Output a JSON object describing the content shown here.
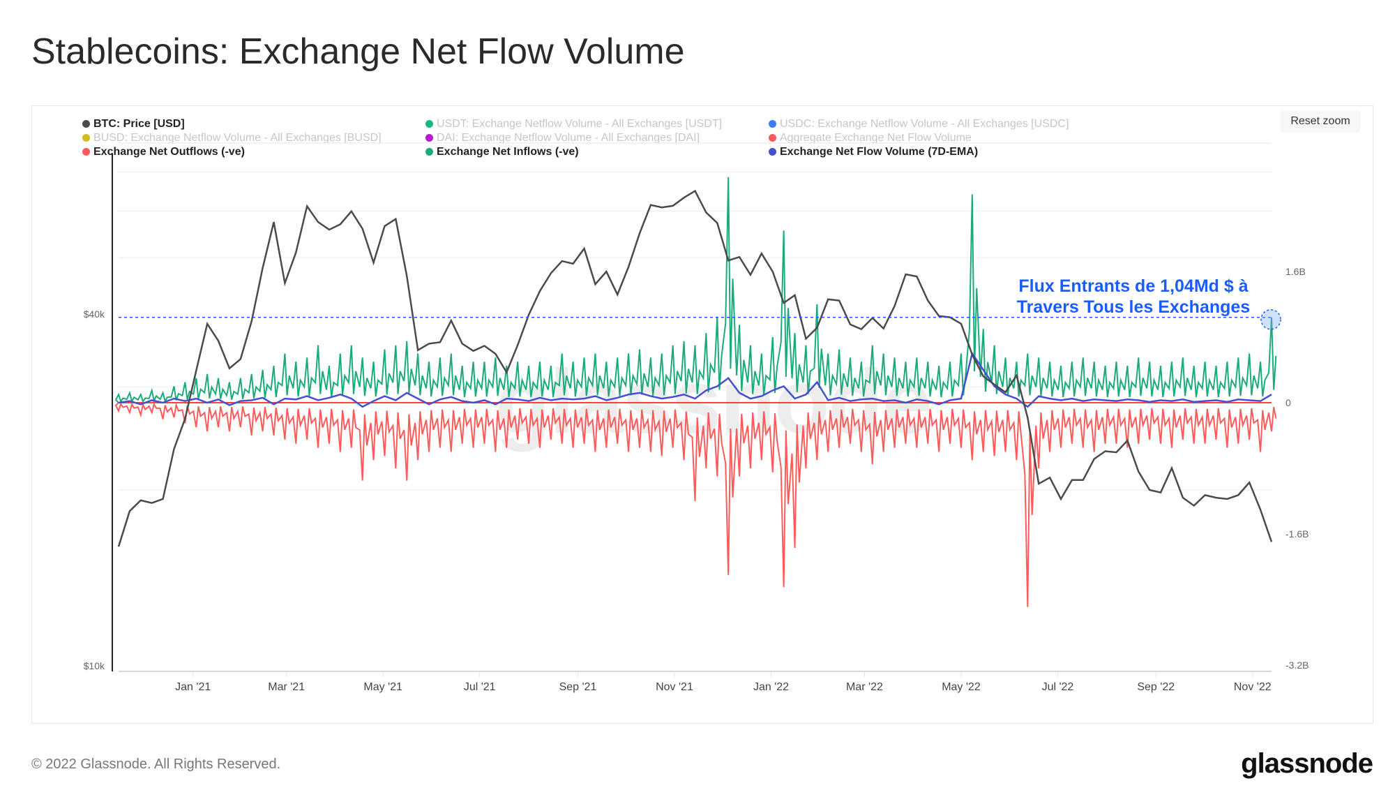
{
  "title": "Stablecoins: Exchange Net Flow Volume",
  "reset_zoom_label": "Reset zoom",
  "watermark": "glassnode",
  "footer": {
    "copyright": "© 2022 Glassnode. All Rights Reserved.",
    "logo": "glassnode"
  },
  "legend": [
    {
      "label": "BTC: Price [USD]",
      "color": "#4a4a4a",
      "active": true
    },
    {
      "label": "USDT: Exchange Netflow Volume - All Exchanges [USDT]",
      "color": "#1bb67f",
      "active": false
    },
    {
      "label": "USDC: Exchange Netflow Volume - All Exchanges [USDC]",
      "color": "#3b7bff",
      "active": false
    },
    {
      "label": "BUSD: Exchange Netflow Volume - All Exchanges [BUSD]",
      "color": "#d4bc1e",
      "active": false
    },
    {
      "label": "DAI: Exchange Netflow Volume - All Exchanges [DAI]",
      "color": "#b01ec8",
      "active": false
    },
    {
      "label": "Aggregate Exchange Net Flow Volume",
      "color": "#ff5a5a",
      "active": false
    },
    {
      "label": "Exchange Net Outflows (-ve)",
      "color": "#ff5a5a",
      "active": true
    },
    {
      "label": "Exchange Net Inflows (-ve)",
      "color": "#1aab7c",
      "active": true
    },
    {
      "label": "Exchange Net Flow Volume (7D-EMA)",
      "color": "#4450d0",
      "active": true
    }
  ],
  "annotation": {
    "line1": "Flux Entrants de 1,04Md $ à",
    "line2": "Travers Tous les Exchanges",
    "value": 1.04,
    "color": "#1a5cff"
  },
  "chart_data": {
    "type": "line",
    "title": "Stablecoins: Exchange Net Flow Volume",
    "x_ticks": [
      "Jan '21",
      "Mar '21",
      "May '21",
      "Jul '21",
      "Sep '21",
      "Nov '21",
      "Jan '22",
      "Mar '22",
      "May '22",
      "Jul '22",
      "Sep '22",
      "Nov '22"
    ],
    "x_tick_dates": [
      "2021-01-01",
      "2021-03-01",
      "2021-05-01",
      "2021-07-01",
      "2021-09-01",
      "2021-11-01",
      "2022-01-01",
      "2022-03-01",
      "2022-05-01",
      "2022-07-01",
      "2022-09-01",
      "2022-11-01"
    ],
    "xlim": [
      "2020-11-15",
      "2022-11-13"
    ],
    "y_left": {
      "scale": "log",
      "ticks": [
        "$10k",
        "$40k"
      ],
      "tick_values": [
        10000,
        40000
      ],
      "range": [
        10000,
        78000
      ]
    },
    "y_right": {
      "ticks": [
        "1.6B",
        "0",
        "-1.6B",
        "-3.2B"
      ],
      "tick_values": [
        1.6,
        0,
        -1.6,
        -3.2
      ],
      "range": [
        -3.2,
        3.2
      ],
      "unit": "B USD"
    },
    "grid": true,
    "legend_position": "top",
    "x": [
      "2020-11-15",
      "2020-11-22",
      "2020-11-29",
      "2020-12-06",
      "2020-12-13",
      "2020-12-20",
      "2020-12-27",
      "2021-01-03",
      "2021-01-10",
      "2021-01-17",
      "2021-01-24",
      "2021-01-31",
      "2021-02-07",
      "2021-02-14",
      "2021-02-21",
      "2021-02-28",
      "2021-03-07",
      "2021-03-14",
      "2021-03-21",
      "2021-03-28",
      "2021-04-04",
      "2021-04-11",
      "2021-04-18",
      "2021-04-25",
      "2021-05-02",
      "2021-05-09",
      "2021-05-16",
      "2021-05-23",
      "2021-05-30",
      "2021-06-06",
      "2021-06-13",
      "2021-06-20",
      "2021-06-27",
      "2021-07-04",
      "2021-07-11",
      "2021-07-18",
      "2021-07-25",
      "2021-08-01",
      "2021-08-08",
      "2021-08-15",
      "2021-08-22",
      "2021-08-29",
      "2021-09-05",
      "2021-09-12",
      "2021-09-19",
      "2021-09-26",
      "2021-10-03",
      "2021-10-10",
      "2021-10-17",
      "2021-10-24",
      "2021-10-31",
      "2021-11-07",
      "2021-11-14",
      "2021-11-21",
      "2021-11-28",
      "2021-12-05",
      "2021-12-12",
      "2021-12-19",
      "2021-12-26",
      "2022-01-02",
      "2022-01-09",
      "2022-01-16",
      "2022-01-23",
      "2022-01-30",
      "2022-02-06",
      "2022-02-13",
      "2022-02-20",
      "2022-02-27",
      "2022-03-06",
      "2022-03-13",
      "2022-03-20",
      "2022-03-27",
      "2022-04-03",
      "2022-04-10",
      "2022-04-17",
      "2022-04-24",
      "2022-05-01",
      "2022-05-08",
      "2022-05-15",
      "2022-05-22",
      "2022-05-29",
      "2022-06-05",
      "2022-06-12",
      "2022-06-19",
      "2022-06-26",
      "2022-07-03",
      "2022-07-10",
      "2022-07-17",
      "2022-07-24",
      "2022-07-31",
      "2022-08-07",
      "2022-08-14",
      "2022-08-21",
      "2022-08-28",
      "2022-09-04",
      "2022-09-11",
      "2022-09-18",
      "2022-09-25",
      "2022-10-02",
      "2022-10-09",
      "2022-10-16",
      "2022-10-23",
      "2022-10-30",
      "2022-11-06",
      "2022-11-13"
    ],
    "series": [
      {
        "name": "BTC: Price [USD]",
        "axis": "left",
        "color": "#4a4a4a",
        "values": [
          16000,
          18400,
          19200,
          19000,
          19300,
          23500,
          26500,
          32000,
          38500,
          36000,
          32300,
          33500,
          38900,
          48000,
          57500,
          45200,
          51000,
          61200,
          57500,
          55800,
          57000,
          60000,
          56000,
          49000,
          56600,
          58200,
          46500,
          34700,
          35600,
          35800,
          39000,
          35600,
          34600,
          35300,
          34200,
          31800,
          35400,
          39900,
          43800,
          47000,
          49300,
          48800,
          51800,
          45000,
          47300,
          43200,
          48200,
          55000,
          61500,
          60900,
          61300,
          63300,
          65000,
          59700,
          57300,
          49400,
          50100,
          46700,
          50800,
          47300,
          41800,
          43100,
          36300,
          37900,
          42400,
          42200,
          38400,
          37700,
          39400,
          37800,
          41300,
          46800,
          46400,
          42200,
          39700,
          39500,
          38500,
          34100,
          31300,
          30300,
          29400,
          31400,
          26600,
          20500,
          21000,
          19300,
          20800,
          20800,
          22600,
          23300,
          23200,
          24300,
          21500,
          20000,
          19800,
          21800,
          19400,
          18800,
          19600,
          19400,
          19300,
          19600,
          20600,
          18500,
          16300
        ]
      },
      {
        "name": "Exchange Net Inflows (-ve)",
        "axis": "right",
        "color": "#1aab7c",
        "values": [
          0.1,
          0.12,
          0.1,
          0.15,
          0.12,
          0.2,
          0.25,
          0.3,
          0.35,
          0.3,
          0.25,
          0.3,
          0.35,
          0.4,
          0.45,
          0.6,
          0.5,
          0.55,
          0.7,
          0.45,
          0.6,
          0.7,
          0.55,
          0.5,
          0.65,
          0.7,
          0.75,
          0.6,
          0.5,
          0.55,
          0.6,
          0.45,
          0.5,
          0.5,
          0.55,
          0.45,
          0.5,
          0.45,
          0.5,
          0.45,
          0.6,
          0.5,
          0.55,
          0.6,
          0.5,
          0.55,
          0.6,
          0.65,
          0.55,
          0.6,
          0.7,
          0.75,
          0.7,
          0.85,
          1.05,
          2.75,
          0.95,
          0.7,
          0.6,
          0.8,
          2.1,
          0.85,
          0.7,
          1.2,
          0.6,
          0.65,
          0.55,
          0.5,
          0.7,
          0.6,
          0.55,
          0.5,
          0.55,
          0.5,
          0.45,
          0.5,
          0.6,
          2.54,
          0.9,
          0.7,
          0.55,
          0.5,
          0.6,
          0.55,
          0.5,
          0.45,
          0.5,
          0.55,
          0.5,
          0.45,
          0.5,
          0.45,
          0.55,
          0.5,
          0.45,
          0.5,
          0.55,
          0.45,
          0.5,
          0.45,
          0.5,
          0.55,
          0.6,
          0.5,
          1.04
        ]
      },
      {
        "name": "Exchange Net Outflows (-ve)",
        "axis": "right",
        "color": "#ff5a5a",
        "values": [
          -0.1,
          -0.12,
          -0.15,
          -0.12,
          -0.2,
          -0.18,
          -0.25,
          -0.3,
          -0.35,
          -0.3,
          -0.35,
          -0.3,
          -0.4,
          -0.35,
          -0.4,
          -0.45,
          -0.5,
          -0.45,
          -0.55,
          -0.5,
          -0.6,
          -0.55,
          -0.95,
          -0.7,
          -0.65,
          -0.8,
          -0.95,
          -0.7,
          -0.6,
          -0.55,
          -0.6,
          -0.5,
          -0.55,
          -0.5,
          -0.6,
          -0.55,
          -0.45,
          -0.5,
          -0.55,
          -0.45,
          -0.5,
          -0.55,
          -0.5,
          -0.6,
          -0.55,
          -0.5,
          -0.6,
          -0.55,
          -0.6,
          -0.65,
          -0.55,
          -0.7,
          -1.2,
          -0.8,
          -0.9,
          -2.1,
          -0.9,
          -0.8,
          -0.7,
          -0.85,
          -2.25,
          -1.77,
          -0.8,
          -0.7,
          -0.6,
          -0.55,
          -0.5,
          -0.6,
          -0.75,
          -0.6,
          -0.55,
          -0.5,
          -0.55,
          -0.5,
          -0.6,
          -0.5,
          -0.55,
          -0.7,
          -0.6,
          -0.65,
          -0.6,
          -0.7,
          -2.49,
          -0.8,
          -0.6,
          -0.55,
          -0.5,
          -0.55,
          -0.6,
          -0.5,
          -0.5,
          -0.55,
          -0.5,
          -0.45,
          -0.5,
          -0.55,
          -0.45,
          -0.5,
          -0.5,
          -0.45,
          -0.55,
          -0.5,
          -0.45,
          -0.6,
          -0.35
        ]
      },
      {
        "name": "Exchange Net Flow Volume (7D-EMA)",
        "axis": "right",
        "color": "#4450d0",
        "values": [
          0,
          0.02,
          -0.02,
          0.03,
          0,
          0.05,
          0.02,
          0.05,
          0,
          0.04,
          -0.03,
          0.02,
          0.03,
          0.06,
          -0.02,
          0.05,
          0.04,
          0.08,
          0.03,
          0.06,
          0.1,
          0.05,
          -0.05,
          0.02,
          0.08,
          0.03,
          0.12,
          0.05,
          -0.02,
          0.04,
          0.07,
          0.02,
          0,
          0.03,
          -0.02,
          0.05,
          0.04,
          0.02,
          0.06,
          0.03,
          0.05,
          0.04,
          0.05,
          0.08,
          0.03,
          0.06,
          0.1,
          0.12,
          0.08,
          0.05,
          0.07,
          0.1,
          0.05,
          0.15,
          0.2,
          0.3,
          0.12,
          0.05,
          0.08,
          0.15,
          0.2,
          0.05,
          0.1,
          0.25,
          0.03,
          0.06,
          0.02,
          0.04,
          0.05,
          0.02,
          0.03,
          0,
          0.04,
          0.02,
          -0.02,
          0.03,
          0.05,
          0.6,
          0.4,
          0.2,
          0.1,
          0.05,
          -0.05,
          0.08,
          0.05,
          0.03,
          0.05,
          0.02,
          0.04,
          0.03,
          0.02,
          0.04,
          0.03,
          0.01,
          0.03,
          0.02,
          0.04,
          0.01,
          0.02,
          0.03,
          0.01,
          0.04,
          0.03,
          0.02,
          0.1
        ]
      }
    ]
  }
}
